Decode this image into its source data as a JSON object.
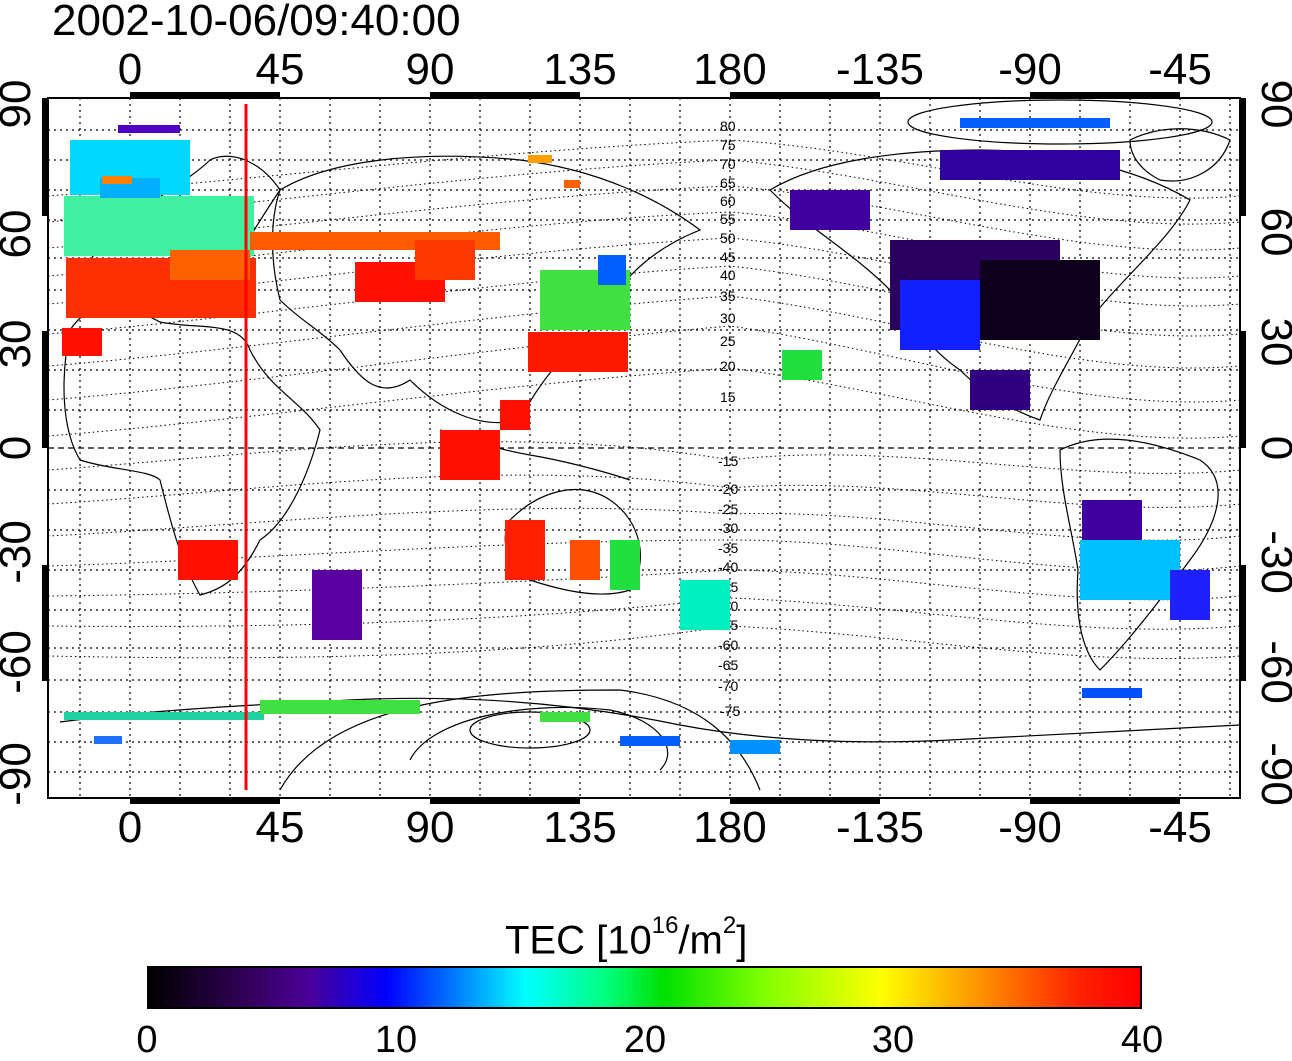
{
  "title": "2002-10-06/09:40:00",
  "map": {
    "lon_ticks": [
      "0",
      "45",
      "90",
      "135",
      "180",
      "-135",
      "-90",
      "-45"
    ],
    "lat_ticks": [
      "90",
      "60",
      "30",
      "0",
      "-30",
      "-60",
      "-90"
    ],
    "lat_lines_north": [
      "80",
      "75",
      "70",
      "65",
      "60",
      "55",
      "50",
      "45",
      "40",
      "35",
      "30",
      "25",
      "20",
      "15"
    ],
    "lat_lines_south": [
      "-15",
      "-20",
      "-25",
      "-30",
      "-35",
      "-40",
      "-45",
      "-50",
      "-55",
      "-60",
      "-65",
      "-70",
      "-75"
    ],
    "marker_line_longitude": 35,
    "marker_line_color": "#ff0000"
  },
  "colorbar": {
    "title_prefix": "TEC  [10",
    "title_exp": "16",
    "title_mid": "/m",
    "title_exp2": "2",
    "title_suffix": "]",
    "ticks": [
      "0",
      "10",
      "20",
      "30",
      "40"
    ],
    "min": 0,
    "max": 40
  }
}
